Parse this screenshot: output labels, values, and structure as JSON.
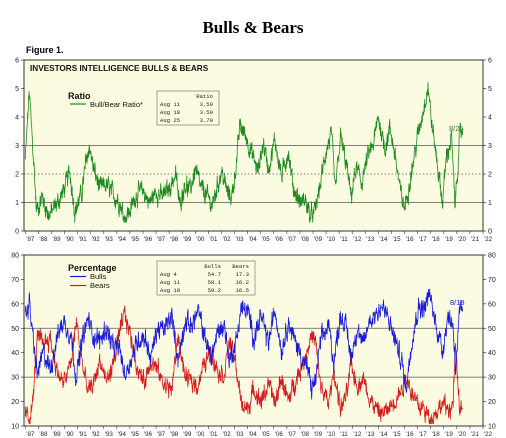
{
  "page": {
    "title": "Bulls & Bears",
    "figure_label": "Figure 1."
  },
  "chart_data": [
    {
      "type": "line",
      "title": "INVESTORS INTELLIGENCE BULLS & BEARS",
      "legend_title": "Ratio",
      "series": [
        {
          "name": "Bull/Bear Ratio*",
          "color": "#1e8a1e"
        }
      ],
      "ylim": [
        0,
        6
      ],
      "yticks": [
        0,
        1,
        2,
        3,
        4,
        5,
        6
      ],
      "reference_lines": [
        {
          "y": 1,
          "style": "solid"
        },
        {
          "y": 2,
          "style": "dotted"
        },
        {
          "y": 3,
          "style": "solid"
        }
      ],
      "xlim": [
        1986.9,
        2022
      ],
      "x_tick_labels": [
        "87",
        "88",
        "89",
        "90",
        "91",
        "92",
        "93",
        "94",
        "95",
        "96",
        "97",
        "98",
        "99",
        "00",
        "01",
        "02",
        "03",
        "04",
        "05",
        "06",
        "07",
        "08",
        "09",
        "10",
        "11",
        "12",
        "13",
        "14",
        "15",
        "16",
        "17",
        "18",
        "19",
        "20",
        "21",
        "22"
      ],
      "anchors": [
        [
          1987.0,
          2.5
        ],
        [
          1987.3,
          4.9
        ],
        [
          1987.7,
          2.0
        ],
        [
          1987.85,
          0.7
        ],
        [
          1988.3,
          1.2
        ],
        [
          1988.8,
          0.55
        ],
        [
          1989.5,
          1.0
        ],
        [
          1990.0,
          1.5
        ],
        [
          1990.4,
          2.1
        ],
        [
          1990.8,
          0.7
        ],
        [
          1991.3,
          1.3
        ],
        [
          1991.6,
          2.3
        ],
        [
          1991.9,
          3.0
        ],
        [
          1992.2,
          2.2
        ],
        [
          1992.7,
          1.5
        ],
        [
          1993.2,
          1.6
        ],
        [
          1993.7,
          1.3
        ],
        [
          1994.2,
          1.0
        ],
        [
          1994.6,
          0.5
        ],
        [
          1995.0,
          0.7
        ],
        [
          1995.5,
          1.3
        ],
        [
          1996.0,
          1.4
        ],
        [
          1996.5,
          1.0
        ],
        [
          1997.0,
          1.4
        ],
        [
          1997.5,
          1.2
        ],
        [
          1998.0,
          1.5
        ],
        [
          1998.5,
          2.0
        ],
        [
          1998.8,
          0.9
        ],
        [
          1999.2,
          1.7
        ],
        [
          1999.6,
          1.4
        ],
        [
          2000.0,
          2.2
        ],
        [
          2000.4,
          1.5
        ],
        [
          2000.8,
          1.3
        ],
        [
          2001.3,
          0.9
        ],
        [
          2001.7,
          1.6
        ],
        [
          2002.0,
          2.1
        ],
        [
          2002.5,
          1.3
        ],
        [
          2002.8,
          1.2
        ],
        [
          2003.2,
          2.6
        ],
        [
          2003.4,
          3.7
        ],
        [
          2003.9,
          3.3
        ],
        [
          2004.4,
          2.6
        ],
        [
          2004.8,
          2.1
        ],
        [
          2005.2,
          3.1
        ],
        [
          2005.6,
          2.2
        ],
        [
          2006.1,
          3.2
        ],
        [
          2006.6,
          1.9
        ],
        [
          2007.1,
          2.8
        ],
        [
          2007.5,
          1.5
        ],
        [
          2008.0,
          1.0
        ],
        [
          2008.4,
          1.1
        ],
        [
          2008.8,
          0.5
        ],
        [
          2009.1,
          0.6
        ],
        [
          2009.5,
          1.5
        ],
        [
          2010.0,
          2.8
        ],
        [
          2010.4,
          3.4
        ],
        [
          2010.7,
          1.4
        ],
        [
          2011.1,
          3.3
        ],
        [
          2011.6,
          2.2
        ],
        [
          2011.9,
          1.2
        ],
        [
          2012.3,
          2.2
        ],
        [
          2012.7,
          1.7
        ],
        [
          2013.2,
          2.6
        ],
        [
          2013.6,
          3.0
        ],
        [
          2014.0,
          4.0
        ],
        [
          2014.5,
          2.9
        ],
        [
          2014.9,
          3.6
        ],
        [
          2015.3,
          2.6
        ],
        [
          2015.7,
          1.3
        ],
        [
          2016.0,
          0.8
        ],
        [
          2016.5,
          2.0
        ],
        [
          2017.0,
          3.3
        ],
        [
          2017.4,
          4.2
        ],
        [
          2017.8,
          5.1
        ],
        [
          2018.1,
          3.7
        ],
        [
          2018.5,
          2.4
        ],
        [
          2018.9,
          1.0
        ],
        [
          2019.2,
          2.6
        ],
        [
          2019.6,
          3.3
        ],
        [
          2019.85,
          0.8
        ],
        [
          2020.2,
          3.2
        ],
        [
          2020.45,
          3.7
        ]
      ],
      "end_label": "8/25",
      "table": {
        "header": "Ratio",
        "rows": [
          {
            "date": "Aug 11",
            "values": [
              "3.59"
            ]
          },
          {
            "date": "Aug 18",
            "values": [
              "3.59"
            ]
          },
          {
            "date": "Aug 25",
            "values": [
              "3.70"
            ]
          }
        ]
      }
    },
    {
      "type": "line",
      "legend_title": "Percentage",
      "series": [
        {
          "name": "Bulls",
          "color": "#1a1adb"
        },
        {
          "name": "Bears",
          "color": "#d41e1e"
        }
      ],
      "ylim": [
        10,
        80
      ],
      "yticks": [
        10,
        20,
        30,
        40,
        50,
        60,
        70,
        80
      ],
      "reference_lines": [
        {
          "y": 30,
          "style": "solid"
        },
        {
          "y": 50,
          "style": "solid"
        }
      ],
      "xlim": [
        1986.9,
        2022
      ],
      "x_tick_labels": [
        "87",
        "88",
        "89",
        "90",
        "91",
        "92",
        "93",
        "94",
        "95",
        "96",
        "97",
        "98",
        "99",
        "00",
        "01",
        "02",
        "03",
        "04",
        "05",
        "06",
        "07",
        "08",
        "09",
        "10",
        "11",
        "12",
        "13",
        "14",
        "15",
        "16",
        "17",
        "18",
        "19",
        "20",
        "21",
        "22"
      ],
      "bulls_anchors": [
        [
          1987.0,
          55
        ],
        [
          1987.3,
          61
        ],
        [
          1987.6,
          45
        ],
        [
          1987.9,
          31
        ],
        [
          1988.4,
          40
        ],
        [
          1988.9,
          33
        ],
        [
          1989.4,
          46
        ],
        [
          1989.9,
          53
        ],
        [
          1990.5,
          47
        ],
        [
          1990.9,
          30
        ],
        [
          1991.4,
          46
        ],
        [
          1991.8,
          54
        ],
        [
          1992.2,
          47
        ],
        [
          1992.7,
          45
        ],
        [
          1993.2,
          50
        ],
        [
          1993.7,
          42
        ],
        [
          1994.2,
          42
        ],
        [
          1994.6,
          31
        ],
        [
          1995.0,
          36
        ],
        [
          1995.6,
          45
        ],
        [
          1996.1,
          47
        ],
        [
          1996.6,
          38
        ],
        [
          1997.1,
          50
        ],
        [
          1997.6,
          49
        ],
        [
          1998.2,
          55
        ],
        [
          1998.7,
          37
        ],
        [
          1999.2,
          53
        ],
        [
          1999.7,
          51
        ],
        [
          2000.2,
          57
        ],
        [
          2000.6,
          49
        ],
        [
          2001.2,
          38
        ],
        [
          2001.7,
          48
        ],
        [
          2002.2,
          52
        ],
        [
          2002.6,
          37
        ],
        [
          2003.1,
          44
        ],
        [
          2003.5,
          58
        ],
        [
          2004.0,
          57
        ],
        [
          2004.5,
          46
        ],
        [
          2005.0,
          55
        ],
        [
          2005.6,
          44
        ],
        [
          2006.1,
          58
        ],
        [
          2006.6,
          41
        ],
        [
          2007.1,
          53
        ],
        [
          2007.6,
          45
        ],
        [
          2008.1,
          39
        ],
        [
          2008.6,
          33
        ],
        [
          2008.9,
          25
        ],
        [
          2009.2,
          29
        ],
        [
          2009.6,
          45
        ],
        [
          2010.2,
          51
        ],
        [
          2010.6,
          36
        ],
        [
          2011.1,
          56
        ],
        [
          2011.6,
          49
        ],
        [
          2011.9,
          38
        ],
        [
          2012.4,
          51
        ],
        [
          2012.8,
          42
        ],
        [
          2013.3,
          53
        ],
        [
          2013.8,
          56
        ],
        [
          2014.3,
          59
        ],
        [
          2014.8,
          53
        ],
        [
          2015.3,
          45
        ],
        [
          2015.8,
          36
        ],
        [
          2016.1,
          25
        ],
        [
          2016.6,
          47
        ],
        [
          2017.1,
          59
        ],
        [
          2017.5,
          58
        ],
        [
          2017.9,
          64
        ],
        [
          2018.3,
          54
        ],
        [
          2018.9,
          41
        ],
        [
          2019.3,
          55
        ],
        [
          2019.7,
          52
        ],
        [
          2019.9,
          34
        ],
        [
          2020.2,
          55
        ],
        [
          2020.45,
          58
        ]
      ],
      "bears_anchors": [
        [
          1987.0,
          15
        ],
        [
          1987.3,
          13
        ],
        [
          1987.6,
          21
        ],
        [
          1987.9,
          46
        ],
        [
          1988.4,
          44
        ],
        [
          1988.9,
          46
        ],
        [
          1989.4,
          33
        ],
        [
          1989.9,
          27
        ],
        [
          1990.5,
          36
        ],
        [
          1990.9,
          53
        ],
        [
          1991.4,
          34
        ],
        [
          1991.8,
          24
        ],
        [
          1992.2,
          27
        ],
        [
          1992.7,
          37
        ],
        [
          1993.2,
          28
        ],
        [
          1993.7,
          35
        ],
        [
          1994.2,
          47
        ],
        [
          1994.6,
          56
        ],
        [
          1995.0,
          48
        ],
        [
          1995.6,
          33
        ],
        [
          1996.1,
          28
        ],
        [
          1996.6,
          37
        ],
        [
          1997.1,
          33
        ],
        [
          1997.6,
          27
        ],
        [
          1998.2,
          25
        ],
        [
          1998.7,
          47
        ],
        [
          1999.2,
          30
        ],
        [
          1999.7,
          28
        ],
        [
          2000.2,
          27
        ],
        [
          2000.6,
          34
        ],
        [
          2001.2,
          41
        ],
        [
          2001.7,
          33
        ],
        [
          2002.2,
          31
        ],
        [
          2002.6,
          45
        ],
        [
          2003.1,
          35
        ],
        [
          2003.5,
          19
        ],
        [
          2004.0,
          17
        ],
        [
          2004.5,
          25
        ],
        [
          2005.0,
          20
        ],
        [
          2005.6,
          27
        ],
        [
          2006.1,
          19
        ],
        [
          2006.6,
          30
        ],
        [
          2007.1,
          20
        ],
        [
          2007.6,
          28
        ],
        [
          2008.1,
          34
        ],
        [
          2008.6,
          42
        ],
        [
          2008.9,
          47
        ],
        [
          2009.2,
          44
        ],
        [
          2009.6,
          26
        ],
        [
          2010.2,
          19
        ],
        [
          2010.6,
          33
        ],
        [
          2011.1,
          17
        ],
        [
          2011.6,
          23
        ],
        [
          2011.9,
          35
        ],
        [
          2012.4,
          26
        ],
        [
          2012.8,
          30
        ],
        [
          2013.3,
          22
        ],
        [
          2013.8,
          17
        ],
        [
          2014.3,
          15
        ],
        [
          2014.8,
          17
        ],
        [
          2015.3,
          21
        ],
        [
          2015.8,
          25
        ],
        [
          2016.1,
          31
        ],
        [
          2016.6,
          23
        ],
        [
          2017.1,
          18
        ],
        [
          2017.5,
          17
        ],
        [
          2017.9,
          13
        ],
        [
          2018.3,
          15
        ],
        [
          2018.9,
          19
        ],
        [
          2019.3,
          17
        ],
        [
          2019.7,
          18
        ],
        [
          2019.9,
          42
        ],
        [
          2020.2,
          18
        ],
        [
          2020.45,
          16
        ]
      ],
      "end_label": "8/18",
      "table": {
        "headers": [
          "Bulls",
          "Bears"
        ],
        "rows": [
          {
            "date": "Aug  4",
            "values": [
              "54.7",
              "17.3"
            ]
          },
          {
            "date": "Aug 11",
            "values": [
              "58.1",
              "16.2"
            ]
          },
          {
            "date": "Aug 18",
            "values": [
              "59.2",
              "16.5"
            ]
          }
        ]
      }
    }
  ]
}
